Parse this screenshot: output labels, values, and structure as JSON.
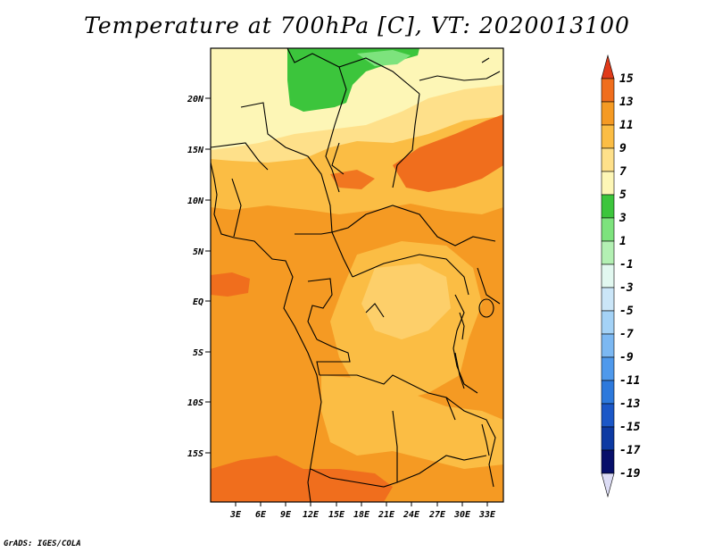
{
  "title": "Temperature at 700hPa [C], VT: 2020013100",
  "credit": "GrADS: IGES/COLA",
  "map": {
    "lon_labels": [
      "3E",
      "6E",
      "9E",
      "12E",
      "15E",
      "18E",
      "21E",
      "24E",
      "27E",
      "30E",
      "33E"
    ],
    "lat_labels": [
      "20N",
      "15N",
      "10N",
      "5N",
      "EQ",
      "5S",
      "10S",
      "15S"
    ]
  },
  "colorbar": {
    "levels": [
      "15",
      "13",
      "11",
      "9",
      "7",
      "5",
      "3",
      "1",
      "-1",
      "-3",
      "-5",
      "-7",
      "-9",
      "-11",
      "-13",
      "-15",
      "-17",
      "-19"
    ],
    "colors": [
      "#e03a19",
      "#f06e1d",
      "#f59a23",
      "#fbbd44",
      "#fee08a",
      "#fdf6b6",
      "#3cc53c",
      "#7de37d",
      "#b3f0b3",
      "#e2f8f0",
      "#cbe6f8",
      "#a4d2f6",
      "#7cb8f2",
      "#4f99ec",
      "#2d79dc",
      "#1b57c7",
      "#0d3aa3",
      "#070f6a",
      "#dcdcf5"
    ]
  }
}
